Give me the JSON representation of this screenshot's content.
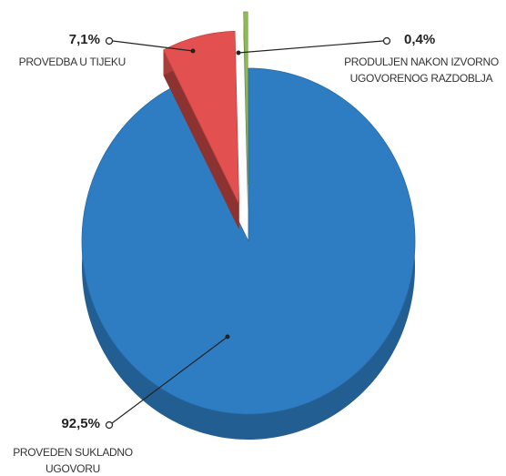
{
  "chart_data": {
    "type": "pie",
    "categories": [
      "PROVEDEN SUKLADNO UGOVORU",
      "PROVEDBA U TIJEKU",
      "PRODULJEN NAKON IZVORNO UGOVORENOG RAZDOBLJA"
    ],
    "values": [
      92.5,
      7.1,
      0.4
    ],
    "value_labels": [
      "92,5%",
      "7,1%",
      "0,4%"
    ],
    "colors": [
      "#2e7dc2",
      "#e2514f",
      "#8dbb5b"
    ]
  }
}
